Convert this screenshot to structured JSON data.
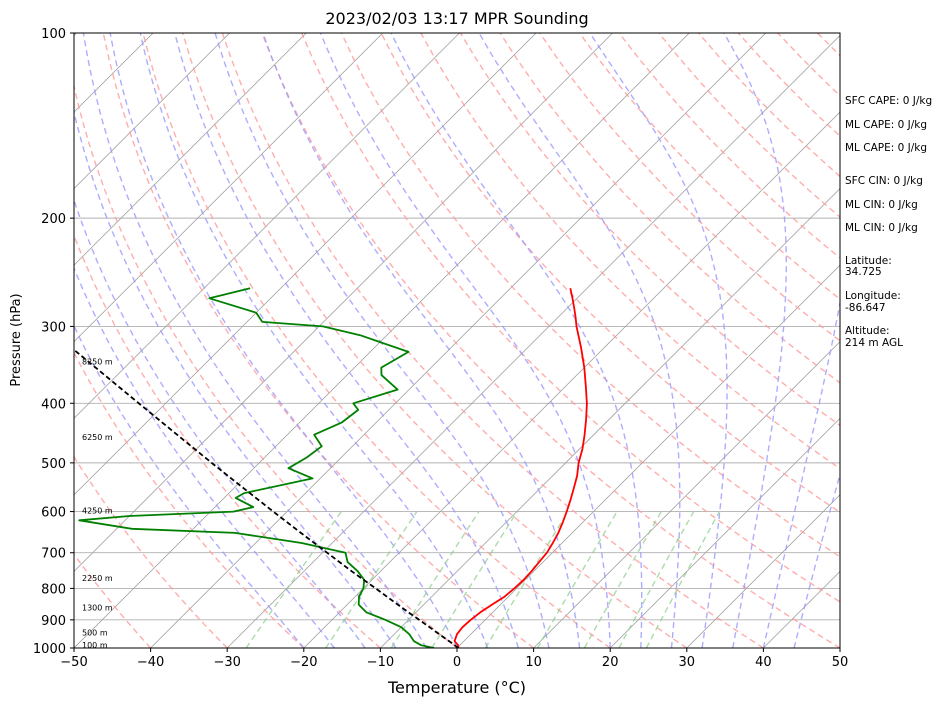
{
  "chart_data": {
    "type": "line",
    "title": "2023/02/03 13:17 MPR Sounding",
    "xlabel": "Temperature (°C)",
    "ylabel": "Pressure (hPa)",
    "xlim": [
      -50,
      50
    ],
    "ylim": [
      1000,
      100
    ],
    "y_scale": "log",
    "grid": true,
    "x_ticks": [
      "−50",
      "−40",
      "−30",
      "−20",
      "−10",
      "0",
      "10",
      "20",
      "30",
      "40",
      "50"
    ],
    "x_tick_values": [
      -50,
      -40,
      -30,
      -20,
      -10,
      0,
      10,
      20,
      30,
      40,
      50
    ],
    "y_ticks": [
      "100",
      "200",
      "300",
      "400",
      "500",
      "600",
      "700",
      "800",
      "900",
      "1000"
    ],
    "y_tick_values": [
      100,
      200,
      300,
      400,
      500,
      600,
      700,
      800,
      900,
      1000
    ],
    "colors": {
      "temperature": "#ff0000",
      "dewpoint": "#008000",
      "parcel": "#000000",
      "dry_adiabat": "#ff9999",
      "moist_adiabat": "#9999ff",
      "mixing_ratio": "#88cc88",
      "isotherm": "#a0a0a0",
      "isobar": "#b0b0b0"
    },
    "series": [
      {
        "key": "temperature",
        "points": [
          [
            1000,
            0.2
          ],
          [
            990,
            -0.2
          ],
          [
            975,
            -1.2
          ],
          [
            950,
            -1.8
          ],
          [
            925,
            -2.0
          ],
          [
            900,
            -1.9
          ],
          [
            875,
            -1.6
          ],
          [
            850,
            -1.1
          ],
          [
            825,
            -0.5
          ],
          [
            800,
            -0.3
          ],
          [
            775,
            -0.2
          ],
          [
            750,
            -0.3
          ],
          [
            725,
            -0.5
          ],
          [
            700,
            -0.7
          ],
          [
            675,
            -1.2
          ],
          [
            650,
            -1.8
          ],
          [
            625,
            -2.6
          ],
          [
            600,
            -3.5
          ],
          [
            575,
            -4.5
          ],
          [
            550,
            -5.6
          ],
          [
            525,
            -6.8
          ],
          [
            500,
            -8.3
          ],
          [
            475,
            -9.6
          ],
          [
            450,
            -11.2
          ],
          [
            425,
            -13.0
          ],
          [
            400,
            -15.0
          ],
          [
            375,
            -17.4
          ],
          [
            350,
            -20.0
          ],
          [
            325,
            -23.0
          ],
          [
            300,
            -26.4
          ],
          [
            290,
            -27.7
          ],
          [
            280,
            -29.1
          ],
          [
            270,
            -30.6
          ],
          [
            260,
            -32.2
          ]
        ]
      },
      {
        "key": "dewpoint",
        "points": [
          [
            1000,
            -3.0
          ],
          [
            990,
            -5.0
          ],
          [
            975,
            -6.5
          ],
          [
            950,
            -8.0
          ],
          [
            925,
            -10.0
          ],
          [
            900,
            -13.0
          ],
          [
            875,
            -16.5
          ],
          [
            850,
            -18.5
          ],
          [
            825,
            -19.5
          ],
          [
            800,
            -20.0
          ],
          [
            775,
            -21.0
          ],
          [
            750,
            -23.0
          ],
          [
            725,
            -25.5
          ],
          [
            700,
            -27.0
          ],
          [
            675,
            -34.0
          ],
          [
            650,
            -44.0
          ],
          [
            640,
            -58.0
          ],
          [
            620,
            -66.0
          ],
          [
            610,
            -60.0
          ],
          [
            600,
            -47.0
          ],
          [
            590,
            -45.0
          ],
          [
            570,
            -48.5
          ],
          [
            560,
            -48.0
          ],
          [
            530,
            -41.0
          ],
          [
            510,
            -45.5
          ],
          [
            490,
            -44.5
          ],
          [
            470,
            -44.0
          ],
          [
            450,
            -46.5
          ],
          [
            430,
            -44.5
          ],
          [
            410,
            -44.0
          ],
          [
            400,
            -45.5
          ],
          [
            380,
            -41.5
          ],
          [
            360,
            -45.5
          ],
          [
            350,
            -46.5
          ],
          [
            330,
            -45.0
          ],
          [
            310,
            -53.5
          ],
          [
            300,
            -59.5
          ],
          [
            295,
            -68.0
          ],
          [
            285,
            -70.0
          ],
          [
            270,
            -78.0
          ],
          [
            260,
            -74.0
          ]
        ]
      },
      {
        "key": "parcel",
        "points": [
          [
            1000,
            0.2
          ],
          [
            975,
            -1.9
          ],
          [
            950,
            -4.1
          ],
          [
            925,
            -6.3
          ],
          [
            900,
            -8.6
          ],
          [
            875,
            -11.0
          ],
          [
            850,
            -13.4
          ],
          [
            800,
            -18.4
          ],
          [
            750,
            -23.8
          ],
          [
            700,
            -29.4
          ],
          [
            650,
            -35.4
          ],
          [
            600,
            -41.8
          ],
          [
            550,
            -48.7
          ],
          [
            500,
            -56.2
          ],
          [
            450,
            -64.4
          ],
          [
            400,
            -73.5
          ],
          [
            350,
            -83.8
          ],
          [
            300,
            -95.7
          ]
        ]
      }
    ],
    "height_labels": [
      {
        "label": "100 m",
        "pressure": 988
      },
      {
        "label": "500 m",
        "pressure": 943
      },
      {
        "label": "1300 m",
        "pressure": 860
      },
      {
        "label": "2250 m",
        "pressure": 770
      },
      {
        "label": "4250 m",
        "pressure": 598
      },
      {
        "label": "6250 m",
        "pressure": 454
      },
      {
        "label": "8250 m",
        "pressure": 342
      }
    ],
    "side_annotations": [
      "SFC CAPE: 0 J/kg",
      "ML CAPE: 0 J/kg",
      "ML CAPE: 0 J/kg",
      "SFC CIN: 0 J/kg",
      "ML CIN: 0 J/kg",
      "ML CIN: 0 J/kg",
      "Latitude:",
      "34.725",
      "Longitude:",
      "-86.647",
      "Altitude:",
      "214 m AGL"
    ]
  }
}
